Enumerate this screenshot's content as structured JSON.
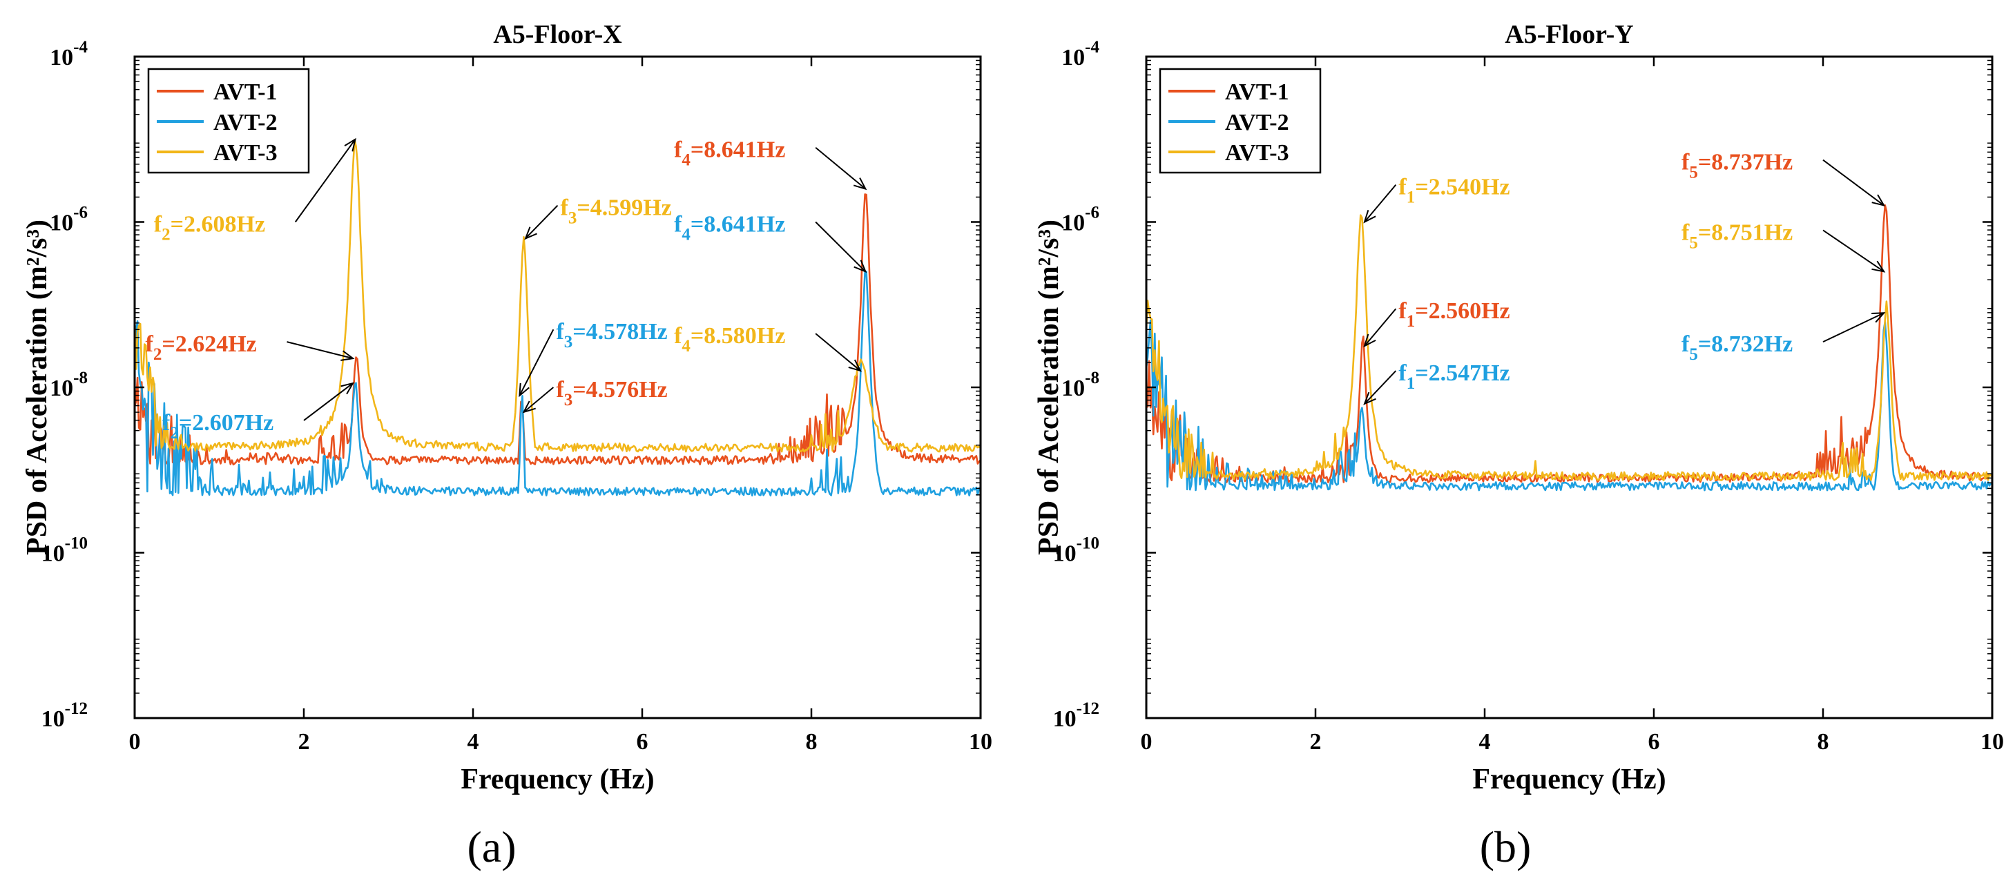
{
  "chart_data": [
    {
      "type": "line",
      "panel_label": "(a)",
      "title": "A5-Floor-X",
      "xlabel": "Frequency (Hz)",
      "ylabel": "PSD of Acceleration (m²/s³)",
      "xlim": [
        0,
        10
      ],
      "ylim_exp": [
        -12,
        -4
      ],
      "y_scale": "log",
      "x_ticks": [
        "0",
        "2",
        "4",
        "6",
        "8",
        "10"
      ],
      "y_ticks": [
        "10",
        "10",
        "10",
        "10",
        "10"
      ],
      "y_tick_exponents": [
        "-12",
        "-10",
        "-8",
        "-6",
        "-4"
      ],
      "grid": false,
      "legend_position": "top-left",
      "legend": [
        "AVT-1",
        "AVT-2",
        "AVT-3"
      ],
      "series": [
        {
          "name": "AVT-1",
          "color": "#e8501e",
          "seed": 11,
          "baseline": [
            [
              0,
              -8.0
            ],
            [
              0.3,
              -8.7
            ],
            [
              1.0,
              -9.2
            ],
            [
              2.0,
              -9.2
            ],
            [
              2.4,
              -8.8
            ],
            [
              3.2,
              -9.4
            ],
            [
              4.2,
              -9.6
            ],
            [
              5.0,
              -9.9
            ],
            [
              6.0,
              -9.7
            ],
            [
              7.0,
              -9.4
            ],
            [
              7.7,
              -9.0
            ],
            [
              8.2,
              -8.5
            ],
            [
              9.0,
              -9.2
            ],
            [
              10.0,
              -9.6
            ]
          ],
          "noise": 0.45,
          "peaks": [
            {
              "x": 2.624,
              "top": -7.6,
              "w": 0.05
            },
            {
              "x": 4.576,
              "top": -8.1,
              "w": 0.04
            },
            {
              "x": 8.641,
              "top": -5.6,
              "w": 0.07
            }
          ]
        },
        {
          "name": "AVT-2",
          "color": "#1fa0e0",
          "seed": 23,
          "baseline": [
            [
              0,
              -7.3
            ],
            [
              0.3,
              -8.7
            ],
            [
              1.0,
              -9.5
            ],
            [
              2.0,
              -9.6
            ],
            [
              2.4,
              -9.0
            ],
            [
              3.2,
              -10.0
            ],
            [
              4.2,
              -10.3
            ],
            [
              5.0,
              -10.7
            ],
            [
              6.0,
              -10.5
            ],
            [
              7.0,
              -10.3
            ],
            [
              7.6,
              -10.0
            ],
            [
              8.2,
              -9.3
            ],
            [
              9.0,
              -9.8
            ],
            [
              10.0,
              -10.1
            ]
          ],
          "noise": 0.6,
          "peaks": [
            {
              "x": 2.607,
              "top": -7.9,
              "w": 0.05
            },
            {
              "x": 4.578,
              "top": -8.1,
              "w": 0.04
            },
            {
              "x": 8.641,
              "top": -6.6,
              "w": 0.07
            }
          ]
        },
        {
          "name": "AVT-3",
          "color": "#f2b619",
          "seed": 37,
          "baseline": [
            [
              0,
              -7.0
            ],
            [
              0.3,
              -8.7
            ],
            [
              1.0,
              -9.2
            ],
            [
              2.0,
              -9.0
            ],
            [
              2.4,
              -8.6
            ],
            [
              3.2,
              -9.1
            ],
            [
              4.0,
              -9.3
            ],
            [
              5.0,
              -9.4
            ],
            [
              6.0,
              -9.7
            ],
            [
              7.0,
              -9.9
            ],
            [
              7.7,
              -9.6
            ],
            [
              8.2,
              -8.4
            ],
            [
              9.0,
              -9.6
            ],
            [
              10.0,
              -10.4
            ]
          ],
          "noise": 0.35,
          "peaks": [
            {
              "x": 2.608,
              "top": -5.0,
              "w": 0.09
            },
            {
              "x": 4.599,
              "top": -6.2,
              "w": 0.07
            },
            {
              "x": 8.58,
              "top": -7.7,
              "w": 0.15
            }
          ]
        }
      ],
      "annotations": [
        {
          "base": "f",
          "sub": "2",
          "rest": "=2.608Hz",
          "color": "#f2b619",
          "tx": 2.608,
          "ty": -5.0,
          "lx": 1.9,
          "ly": -6.0
        },
        {
          "base": "f",
          "sub": "2",
          "rest": "=2.624Hz",
          "color": "#e8501e",
          "tx": 2.58,
          "ty": -7.65,
          "lx": 1.8,
          "ly": -7.45
        },
        {
          "base": "f",
          "sub": "2",
          "rest": "=2.607Hz",
          "color": "#1fa0e0",
          "tx": 2.58,
          "ty": -7.95,
          "lx": 2.0,
          "ly": -8.4
        },
        {
          "base": "f",
          "sub": "3",
          "rest": "=4.599Hz",
          "color": "#f2b619",
          "tx": 4.62,
          "ty": -6.2,
          "lx": 5.0,
          "ly": -5.8
        },
        {
          "base": "f",
          "sub": "3",
          "rest": "=4.578Hz",
          "color": "#1fa0e0",
          "tx": 4.55,
          "ty": -8.1,
          "lx": 4.95,
          "ly": -7.3
        },
        {
          "base": "f",
          "sub": "3",
          "rest": "=4.576Hz",
          "color": "#e8501e",
          "tx": 4.6,
          "ty": -8.3,
          "lx": 4.95,
          "ly": -8.0
        },
        {
          "base": "f",
          "sub": "4",
          "rest": "=8.641Hz",
          "color": "#e8501e",
          "tx": 8.64,
          "ty": -5.6,
          "lx": 8.05,
          "ly": -5.1
        },
        {
          "base": "f",
          "sub": "4",
          "rest": "=8.641Hz",
          "color": "#1fa0e0",
          "tx": 8.64,
          "ty": -6.6,
          "lx": 8.05,
          "ly": -6.0
        },
        {
          "base": "f",
          "sub": "4",
          "rest": "=8.580Hz",
          "color": "#f2b619",
          "tx": 8.58,
          "ty": -7.8,
          "lx": 8.05,
          "ly": -7.35
        }
      ]
    },
    {
      "type": "line",
      "panel_label": "(b)",
      "title": "A5-Floor-Y",
      "xlabel": "Frequency (Hz)",
      "ylabel": "PSD of Acceleration (m²/s³)",
      "xlim": [
        0,
        10
      ],
      "ylim_exp": [
        -12,
        -4
      ],
      "y_scale": "log",
      "x_ticks": [
        "0",
        "2",
        "4",
        "6",
        "8",
        "10"
      ],
      "y_ticks": [
        "10",
        "10",
        "10",
        "10",
        "10"
      ],
      "y_tick_exponents": [
        "-12",
        "-10",
        "-8",
        "-6",
        "-4"
      ],
      "grid": false,
      "legend_position": "top-left",
      "legend": [
        "AVT-1",
        "AVT-2",
        "AVT-3"
      ],
      "series": [
        {
          "name": "AVT-1",
          "color": "#e8501e",
          "seed": 53,
          "baseline": [
            [
              0,
              -7.8
            ],
            [
              0.3,
              -8.6
            ],
            [
              1.0,
              -9.4
            ],
            [
              2.0,
              -9.5
            ],
            [
              2.4,
              -9.0
            ],
            [
              3.0,
              -9.7
            ],
            [
              4.0,
              -9.9
            ],
            [
              5.0,
              -9.9
            ],
            [
              6.0,
              -10.0
            ],
            [
              7.0,
              -9.9
            ],
            [
              7.8,
              -9.4
            ],
            [
              8.3,
              -8.6
            ],
            [
              9.0,
              -9.4
            ],
            [
              10.0,
              -9.9
            ]
          ],
          "noise": 0.5,
          "peaks": [
            {
              "x": 2.56,
              "top": -7.4,
              "w": 0.05
            },
            {
              "x": 8.737,
              "top": -5.8,
              "w": 0.08
            }
          ]
        },
        {
          "name": "AVT-2",
          "color": "#1fa0e0",
          "seed": 71,
          "baseline": [
            [
              0,
              -7.5
            ],
            [
              0.3,
              -8.6
            ],
            [
              1.0,
              -9.5
            ],
            [
              2.0,
              -9.5
            ],
            [
              2.4,
              -9.0
            ],
            [
              3.0,
              -9.8
            ],
            [
              4.0,
              -10.0
            ],
            [
              5.0,
              -10.1
            ],
            [
              6.0,
              -10.2
            ],
            [
              7.0,
              -10.1
            ],
            [
              7.8,
              -9.8
            ],
            [
              8.3,
              -9.4
            ],
            [
              9.0,
              -9.8
            ],
            [
              10.0,
              -10.3
            ]
          ],
          "noise": 0.55,
          "peaks": [
            {
              "x": 2.547,
              "top": -8.2,
              "w": 0.04
            },
            {
              "x": 8.732,
              "top": -7.2,
              "w": 0.06
            }
          ]
        },
        {
          "name": "AVT-3",
          "color": "#f2b619",
          "seed": 89,
          "baseline": [
            [
              0,
              -7.1
            ],
            [
              0.3,
              -8.6
            ],
            [
              1.0,
              -9.4
            ],
            [
              2.0,
              -9.3
            ],
            [
              2.3,
              -8.8
            ],
            [
              3.0,
              -9.6
            ],
            [
              4.0,
              -9.8
            ],
            [
              4.6,
              -9.5
            ],
            [
              5.0,
              -9.9
            ],
            [
              6.0,
              -10.0
            ],
            [
              7.0,
              -10.0
            ],
            [
              7.8,
              -9.6
            ],
            [
              8.3,
              -9.0
            ],
            [
              9.0,
              -9.7
            ],
            [
              10.0,
              -10.2
            ]
          ],
          "noise": 0.45,
          "peaks": [
            {
              "x": 2.54,
              "top": -5.9,
              "w": 0.08
            },
            {
              "x": 4.6,
              "top": -8.9,
              "w": 0.015
            },
            {
              "x": 8.751,
              "top": -7.0,
              "w": 0.07
            }
          ]
        }
      ],
      "annotations": [
        {
          "base": "f",
          "sub": "1",
          "rest": "=2.540Hz",
          "color": "#f2b619",
          "tx": 2.58,
          "ty": -6.0,
          "lx": 2.95,
          "ly": -5.55
        },
        {
          "base": "f",
          "sub": "1",
          "rest": "=2.560Hz",
          "color": "#e8501e",
          "tx": 2.58,
          "ty": -7.5,
          "lx": 2.95,
          "ly": -7.05
        },
        {
          "base": "f",
          "sub": "1",
          "rest": "=2.547Hz",
          "color": "#1fa0e0",
          "tx": 2.58,
          "ty": -8.2,
          "lx": 2.95,
          "ly": -7.8
        },
        {
          "base": "f",
          "sub": "5",
          "rest": "=8.737Hz",
          "color": "#e8501e",
          "tx": 8.72,
          "ty": -5.8,
          "lx": 8.0,
          "ly": -5.25
        },
        {
          "base": "f",
          "sub": "5",
          "rest": "=8.751Hz",
          "color": "#f2b619",
          "tx": 8.72,
          "ty": -6.6,
          "lx": 8.0,
          "ly": -6.1
        },
        {
          "base": "f",
          "sub": "5",
          "rest": "=8.732Hz",
          "color": "#1fa0e0",
          "tx": 8.72,
          "ty": -7.1,
          "lx": 8.0,
          "ly": -7.45
        }
      ]
    }
  ]
}
